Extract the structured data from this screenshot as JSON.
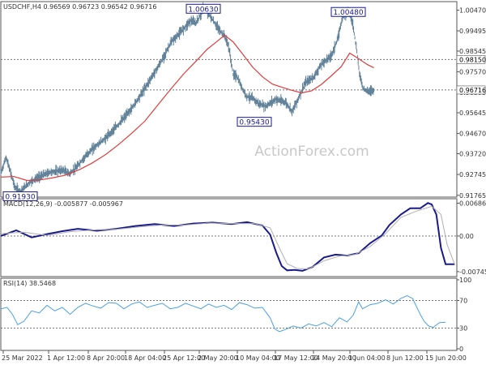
{
  "chart_data": [
    {
      "type": "line",
      "panel": "price",
      "title": "USDCHF,H4 0.96569 0.96723 0.96542 0.96716",
      "watermark": "ActionForex.com",
      "ylim": [
        0.9168,
        1.0087
      ],
      "yticks": [
        "1.00470",
        "0.99495",
        "0.98545",
        "0.97570",
        "0.96595",
        "0.95645",
        "0.94670",
        "0.93720",
        "0.92745",
        "0.91765"
      ],
      "ytick_values": [
        1.0047,
        0.99495,
        0.98545,
        0.9757,
        0.96595,
        0.95645,
        0.9467,
        0.9372,
        0.92745,
        0.91765
      ],
      "xticks": [
        "25 Mar 2022",
        "1 Apr 12:00",
        "8 Apr 20:00",
        "18 Apr 04:00",
        "25 Apr 12:00",
        "2 May 20:00",
        "10 May 04:00",
        "17 May 12:00",
        "24 May 20:00",
        "1 Jun 04:00",
        "8 Jun 12:00",
        "15 Jun 20:00"
      ],
      "xtick_index": [
        0,
        40,
        80,
        120,
        160,
        200,
        240,
        280,
        320,
        360,
        400,
        440
      ],
      "n_points": 460,
      "close_path": [
        [
          0,
          0.928
        ],
        [
          8,
          0.9355
        ],
        [
          22,
          0.921
        ],
        [
          30,
          0.9195
        ],
        [
          45,
          0.924
        ],
        [
          60,
          0.9265
        ],
        [
          75,
          0.9285
        ],
        [
          95,
          0.9295
        ],
        [
          105,
          0.9278
        ],
        [
          115,
          0.9305
        ],
        [
          125,
          0.9345
        ],
        [
          140,
          0.9395
        ],
        [
          160,
          0.9445
        ],
        [
          180,
          0.951
        ],
        [
          200,
          0.9585
        ],
        [
          215,
          0.9655
        ],
        [
          230,
          0.973
        ],
        [
          245,
          0.9805
        ],
        [
          260,
          0.9895
        ],
        [
          275,
          0.9945
        ],
        [
          290,
          0.9998
        ],
        [
          298,
          0.9985
        ],
        [
          305,
          1.0023
        ],
        [
          310,
          1.0063
        ],
        [
          318,
          1.0028
        ],
        [
          328,
          0.998
        ],
        [
          336,
          0.9945
        ],
        [
          342,
          0.9925
        ],
        [
          348,
          0.9878
        ],
        [
          355,
          0.9745
        ],
        [
          360,
          0.9738
        ],
        [
          368,
          0.9685
        ],
        [
          375,
          0.9643
        ],
        [
          385,
          0.9632
        ],
        [
          395,
          0.9605
        ],
        [
          405,
          0.9595
        ],
        [
          420,
          0.9628
        ],
        [
          435,
          0.9613
        ],
        [
          445,
          0.9572
        ],
        [
          455,
          0.9634
        ],
        [
          465,
          0.9704
        ],
        [
          478,
          0.9732
        ],
        [
          490,
          0.9793
        ],
        [
          505,
          0.9833
        ],
        [
          515,
          0.9913
        ],
        [
          522,
          1.0016
        ],
        [
          528,
          1.0027
        ],
        [
          531,
          1.0048
        ],
        [
          538,
          0.998
        ],
        [
          543,
          0.9876
        ],
        [
          548,
          0.9752
        ],
        [
          553,
          0.9682
        ],
        [
          560,
          0.9665
        ],
        [
          570,
          0.9672
        ]
      ],
      "price_index_scale": 0.808,
      "ma_series": {
        "name": "MA",
        "path": [
          [
            0,
            0.9262
          ],
          [
            20,
            0.9265
          ],
          [
            40,
            0.9246
          ],
          [
            60,
            0.9249
          ],
          [
            80,
            0.9259
          ],
          [
            100,
            0.9272
          ],
          [
            120,
            0.9297
          ],
          [
            140,
            0.9329
          ],
          [
            160,
            0.9368
          ],
          [
            180,
            0.9415
          ],
          [
            200,
            0.9468
          ],
          [
            220,
            0.9525
          ],
          [
            240,
            0.9601
          ],
          [
            260,
            0.9677
          ],
          [
            280,
            0.9749
          ],
          [
            300,
            0.9813
          ],
          [
            315,
            0.9862
          ],
          [
            330,
            0.9899
          ],
          [
            342,
            0.9929
          ],
          [
            355,
            0.9898
          ],
          [
            370,
            0.9838
          ],
          [
            385,
            0.9778
          ],
          [
            400,
            0.9733
          ],
          [
            415,
            0.9699
          ],
          [
            430,
            0.9684
          ],
          [
            445,
            0.967
          ],
          [
            460,
            0.9658
          ],
          [
            475,
            0.9668
          ],
          [
            490,
            0.9698
          ],
          [
            505,
            0.9738
          ],
          [
            520,
            0.9781
          ],
          [
            533,
            0.9845
          ],
          [
            545,
            0.9822
          ],
          [
            560,
            0.9791
          ],
          [
            570,
            0.9776
          ]
        ]
      },
      "annotations": [
        {
          "text": "0.91930",
          "value": 0.9193,
          "index": 24
        },
        {
          "text": "1.00630",
          "value": 1.0063,
          "index": 250
        },
        {
          "text": "0.95430",
          "value": 0.9543,
          "index": 313
        },
        {
          "text": "1.00480",
          "value": 1.0048,
          "index": 429
        }
      ],
      "hlines": [
        {
          "value": 0.9815,
          "label": "0.98150",
          "style": "dotted",
          "label_bg": "#ffffff",
          "label_color": "#000000"
        },
        {
          "value": 0.96716,
          "label": "0.96716",
          "style": "dotted",
          "label_bg": "#ffffff",
          "label_color": "#000000"
        }
      ],
      "colors": {
        "price": "#5f8098",
        "ma": "#e03c3c"
      }
    },
    {
      "type": "line",
      "panel": "macd",
      "title": "MACD(12,26,9) -0.005877 -0.005967",
      "ylim": [
        -0.0085,
        0.0078
      ],
      "yticks": [
        "0.006861",
        "0.00",
        "-0.007454"
      ],
      "ytick_values": [
        0.006861,
        0,
        -0.007454
      ],
      "grid": "dotted zero line",
      "series": [
        {
          "name": "macd",
          "path": [
            [
              0,
              0.0
            ],
            [
              20,
              0.0012
            ],
            [
              40,
              -0.0003
            ],
            [
              60,
              0.0004
            ],
            [
              80,
              0.001
            ],
            [
              100,
              0.0015
            ],
            [
              125,
              0.0011
            ],
            [
              150,
              0.0015
            ],
            [
              175,
              0.0021
            ],
            [
              200,
              0.0025
            ],
            [
              225,
              0.0021
            ],
            [
              250,
              0.0026
            ],
            [
              275,
              0.0028
            ],
            [
              300,
              0.0025
            ],
            [
              320,
              0.0029
            ],
            [
              340,
              0.0022
            ],
            [
              350,
              0.0003
            ],
            [
              358,
              -0.0035
            ],
            [
              365,
              -0.0063
            ],
            [
              372,
              -0.0072
            ],
            [
              382,
              -0.0071
            ],
            [
              392,
              -0.0073
            ],
            [
              405,
              -0.0065
            ],
            [
              420,
              -0.0045
            ],
            [
              435,
              -0.0039
            ],
            [
              450,
              -0.0041
            ],
            [
              465,
              -0.0036
            ],
            [
              480,
              -0.0015
            ],
            [
              495,
              0.0001
            ],
            [
              505,
              0.0023
            ],
            [
              520,
              0.0045
            ],
            [
              532,
              0.0058
            ],
            [
              545,
              0.0058
            ],
            [
              555,
              0.0069
            ],
            [
              560,
              0.0066
            ],
            [
              566,
              0.0045
            ],
            [
              572,
              -0.0025
            ],
            [
              578,
              -0.0059
            ],
            [
              590,
              -0.0059
            ]
          ]
        },
        {
          "name": "signal",
          "path": [
            [
              0,
              0.0005
            ],
            [
              30,
              0.0008
            ],
            [
              60,
              0.0001
            ],
            [
              90,
              0.0009
            ],
            [
              125,
              0.0013
            ],
            [
              150,
              0.0014
            ],
            [
              180,
              0.0019
            ],
            [
              210,
              0.0023
            ],
            [
              240,
              0.0023
            ],
            [
              270,
              0.0027
            ],
            [
              300,
              0.0026
            ],
            [
              330,
              0.0026
            ],
            [
              350,
              0.0017
            ],
            [
              362,
              -0.0025
            ],
            [
              372,
              -0.0058
            ],
            [
              385,
              -0.0068
            ],
            [
              400,
              -0.0069
            ],
            [
              420,
              -0.0052
            ],
            [
              440,
              -0.0042
            ],
            [
              460,
              -0.0039
            ],
            [
              480,
              -0.0022
            ],
            [
              500,
              0.0005
            ],
            [
              520,
              0.0039
            ],
            [
              540,
              0.0052
            ],
            [
              560,
              0.0062
            ],
            [
              572,
              0.0045
            ],
            [
              580,
              -0.0018
            ],
            [
              590,
              -0.006
            ]
          ]
        }
      ],
      "colors": {
        "macd": "#1a1a8c",
        "signal": "#b0b0b0"
      }
    },
    {
      "type": "line",
      "panel": "rsi",
      "title": "RSI(14) 38.5468",
      "ylim": [
        0,
        100
      ],
      "yticks": [
        "100",
        "70",
        "30",
        "0"
      ],
      "ytick_values": [
        100,
        70,
        30,
        0
      ],
      "hlines": [
        70,
        30
      ],
      "series": [
        {
          "name": "rsi",
          "path": [
            [
              0,
              58
            ],
            [
              8,
              60
            ],
            [
              15,
              50
            ],
            [
              22,
              35
            ],
            [
              30,
              40
            ],
            [
              40,
              55
            ],
            [
              50,
              52
            ],
            [
              60,
              63
            ],
            [
              70,
              55
            ],
            [
              80,
              60
            ],
            [
              90,
              50
            ],
            [
              100,
              60
            ],
            [
              110,
              66
            ],
            [
              120,
              62
            ],
            [
              130,
              59
            ],
            [
              140,
              67
            ],
            [
              150,
              66
            ],
            [
              160,
              58
            ],
            [
              170,
              65
            ],
            [
              180,
              68
            ],
            [
              190,
              60
            ],
            [
              200,
              63
            ],
            [
              210,
              66
            ],
            [
              220,
              58
            ],
            [
              230,
              60
            ],
            [
              240,
              66
            ],
            [
              250,
              62
            ],
            [
              260,
              58
            ],
            [
              270,
              65
            ],
            [
              280,
              60
            ],
            [
              290,
              63
            ],
            [
              300,
              57
            ],
            [
              310,
              67
            ],
            [
              320,
              64
            ],
            [
              330,
              59
            ],
            [
              340,
              60
            ],
            [
              350,
              45
            ],
            [
              356,
              29
            ],
            [
              362,
              25
            ],
            [
              370,
              28
            ],
            [
              380,
              33
            ],
            [
              390,
              30
            ],
            [
              400,
              36
            ],
            [
              410,
              33
            ],
            [
              420,
              38
            ],
            [
              430,
              32
            ],
            [
              440,
              45
            ],
            [
              450,
              39
            ],
            [
              458,
              49
            ],
            [
              465,
              68
            ],
            [
              470,
              58
            ],
            [
              480,
              64
            ],
            [
              490,
              66
            ],
            [
              500,
              71
            ],
            [
              510,
              65
            ],
            [
              520,
              73
            ],
            [
              528,
              77
            ],
            [
              535,
              73
            ],
            [
              545,
              50
            ],
            [
              550,
              40
            ],
            [
              556,
              33
            ],
            [
              562,
              31
            ],
            [
              570,
              38
            ],
            [
              578,
              38.5
            ]
          ]
        }
      ],
      "colors": {
        "rsi": "#4aa0e6"
      }
    }
  ]
}
